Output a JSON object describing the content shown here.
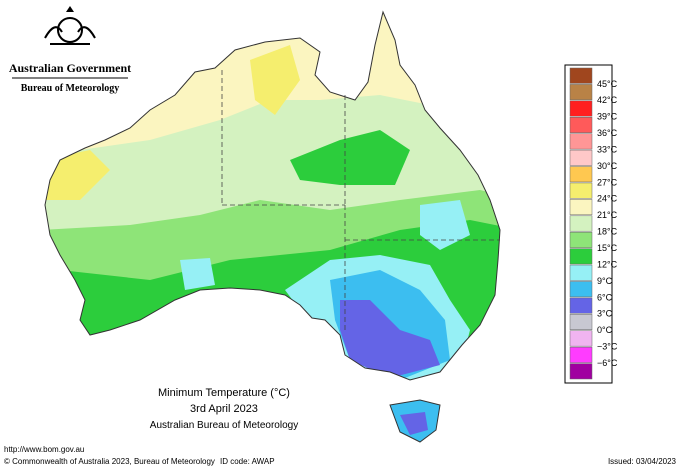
{
  "header": {
    "government": "Australian Government",
    "agency": "Bureau of Meteorology"
  },
  "map": {
    "title": "Minimum Temperature (°C)",
    "date": "3rd April 2023",
    "source": "Australian Bureau of Meteorology"
  },
  "legend": [
    {
      "label": "45°C",
      "color": "#a0461e"
    },
    {
      "label": "42°C",
      "color": "#b98246"
    },
    {
      "label": "39°C",
      "color": "#ff2020"
    },
    {
      "label": "36°C",
      "color": "#ff5a5a"
    },
    {
      "label": "33°C",
      "color": "#ff9696"
    },
    {
      "label": "30°C",
      "color": "#ffc8c8"
    },
    {
      "label": "27°C",
      "color": "#ffc850"
    },
    {
      "label": "24°C",
      "color": "#f5ee6e"
    },
    {
      "label": "21°C",
      "color": "#fbf5c0"
    },
    {
      "label": "18°C",
      "color": "#d4f2c0"
    },
    {
      "label": "15°C",
      "color": "#8ee478"
    },
    {
      "label": "12°C",
      "color": "#2ccd3c"
    },
    {
      "label": "9°C",
      "color": "#96f0f5"
    },
    {
      "label": "6°C",
      "color": "#3cbef0"
    },
    {
      "label": "3°C",
      "color": "#6464e6"
    },
    {
      "label": "0°C",
      "color": "#c8c8d2"
    },
    {
      "label": "−3°C",
      "color": "#f0b4f0"
    },
    {
      "label": "−6°C",
      "color": "#ff3cff"
    },
    {
      "label": "",
      "color": "#a000a0"
    }
  ],
  "footer": {
    "url": "http://www.bom.gov.au",
    "copyright": "© Commonwealth of Australia 2023, Bureau of Meteorology",
    "id_code": "ID code: AWAP",
    "issued": "Issued: 03/04/2023"
  }
}
